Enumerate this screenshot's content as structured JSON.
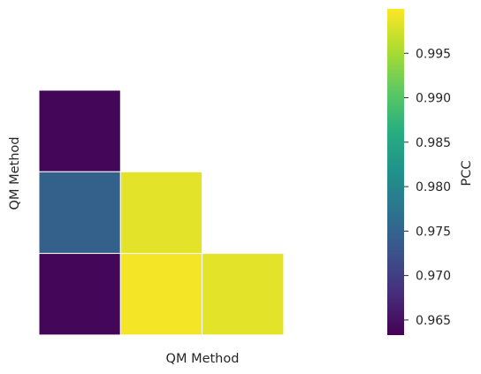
{
  "chart_data": {
    "type": "heatmap",
    "title": "",
    "xlabel": "QM Method",
    "ylabel": "QM Method",
    "mask": "upper-triangle",
    "matrix": [
      [
        0.9638,
        null,
        null
      ],
      [
        0.9745,
        0.9985,
        null
      ],
      [
        0.9638,
        0.9995,
        0.9985
      ]
    ],
    "colormap": "viridis",
    "vmin": 0.9633,
    "vmax": 1.0,
    "colorbar": {
      "label": "PCC",
      "ticks": [
        "0.965",
        "0.970",
        "0.975",
        "0.980",
        "0.985",
        "0.990",
        "0.995"
      ],
      "tick_values": [
        0.965,
        0.97,
        0.975,
        0.98,
        0.985,
        0.99,
        0.995
      ]
    },
    "grid": false
  }
}
